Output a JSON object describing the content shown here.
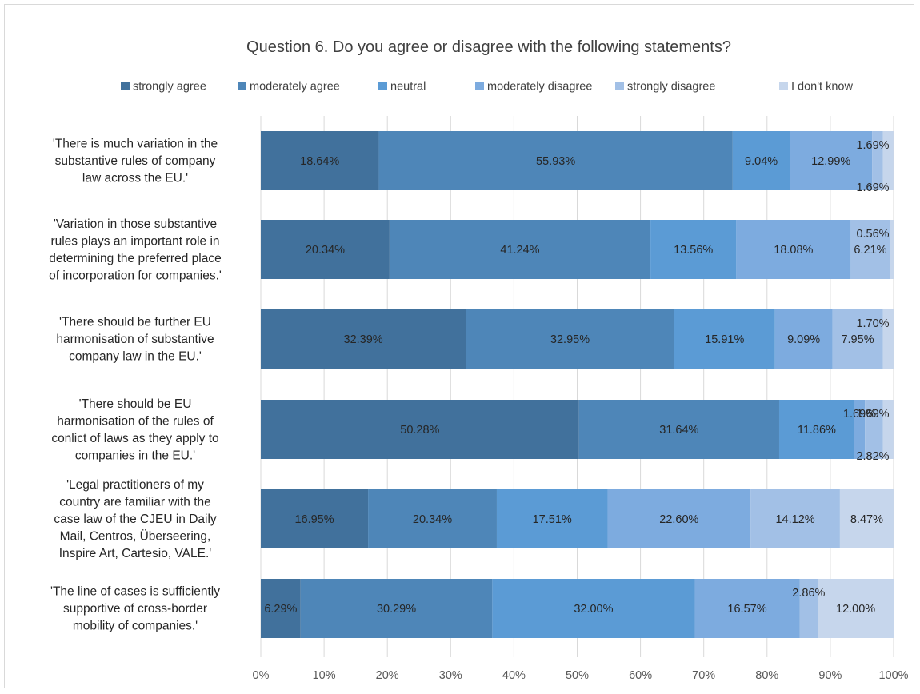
{
  "chart_data": {
    "type": "bar",
    "orientation": "horizontal",
    "stacked": "percent",
    "title": "Question 6. Do you agree or disagree with the following statements?",
    "legend_position": "top",
    "categories": [
      "'There is much variation in the substantive rules of company law across the EU.'",
      "'Variation in those substantive rules plays an important role in determining the preferred place of incorporation for companies.'",
      "'There should be further EU harmonisation of substantive company law in the EU.'",
      "'There should be EU harmonisation of the rules of conlict of laws as they apply to companies in the EU.'",
      "'Legal practitioners of my country are familiar with the case law of the CJEU in Daily Mail, Centros, Überseering, Inspire Art, Cartesio, VALE.'",
      "'The line of cases is sufficiently supportive of cross-border mobility of companies.'"
    ],
    "category_lines": [
      [
        "'There is much variation in the",
        "substantive rules of company",
        "law across the EU.'"
      ],
      [
        "'Variation in those substantive",
        "rules plays an important role in",
        "determining the preferred place",
        "of incorporation for companies.'"
      ],
      [
        "'There should be further EU",
        "harmonisation of substantive",
        "company law in the EU.'"
      ],
      [
        "'There should be EU",
        "harmonisation of the rules of",
        "conlict of laws as they apply to",
        "companies in the EU.'"
      ],
      [
        "'Legal practitioners of my",
        "country are familiar with the",
        "case law of the CJEU in Daily",
        "Mail, Centros, Überseering,",
        "Inspire Art, Cartesio, VALE.'"
      ],
      [
        "'The line of cases is sufficiently",
        "supportive of cross-border",
        "mobility of companies.'"
      ]
    ],
    "series": [
      {
        "name": "strongly agree",
        "color": "#41719c",
        "values": [
          18.64,
          20.34,
          32.39,
          50.28,
          16.95,
          6.29
        ],
        "labels": [
          "18.64%",
          "20.34%",
          "32.39%",
          "50.28%",
          "16.95%",
          "6.29%"
        ]
      },
      {
        "name": "moderately agree",
        "color": "#4e86b8",
        "values": [
          55.93,
          41.24,
          32.95,
          31.64,
          20.34,
          30.29
        ],
        "labels": [
          "55.93%",
          "41.24%",
          "32.95%",
          "31.64%",
          "20.34%",
          "30.29%"
        ]
      },
      {
        "name": "neutral",
        "color": "#5b9bd5",
        "values": [
          9.04,
          13.56,
          15.91,
          11.86,
          17.51,
          32.0
        ],
        "labels": [
          "9.04%",
          "13.56%",
          "15.91%",
          "11.86%",
          "17.51%",
          "32.00%"
        ]
      },
      {
        "name": "moderately disagree",
        "color": "#7dabdf",
        "values": [
          12.99,
          18.08,
          9.09,
          1.69,
          22.6,
          16.57
        ],
        "labels": [
          "12.99%",
          "18.08%",
          "9.09%",
          "1.69%",
          "22.60%",
          "16.57%"
        ]
      },
      {
        "name": "strongly disagree",
        "color": "#a2c0e6",
        "values": [
          1.69,
          6.21,
          7.95,
          2.82,
          14.12,
          2.86
        ],
        "labels": [
          "1.69%",
          "6.21%",
          "7.95%",
          "2.82%",
          "14.12%",
          "2.86%"
        ]
      },
      {
        "name": "I don't know",
        "color": "#c6d6ec",
        "values": [
          1.69,
          0.56,
          1.7,
          1.69,
          8.47,
          12.0
        ],
        "labels": [
          "1.69%",
          "0.56%",
          "1.70%",
          "1.69%",
          "8.47%",
          "12.00%"
        ]
      }
    ],
    "xlim": [
      0,
      100
    ],
    "x_ticks": [
      0,
      10,
      20,
      30,
      40,
      50,
      60,
      70,
      80,
      90,
      100
    ],
    "x_tick_labels": [
      "0%",
      "10%",
      "20%",
      "30%",
      "40%",
      "50%",
      "60%",
      "70%",
      "80%",
      "90%",
      "100%"
    ],
    "grid": true,
    "xlabel": "",
    "ylabel": ""
  }
}
